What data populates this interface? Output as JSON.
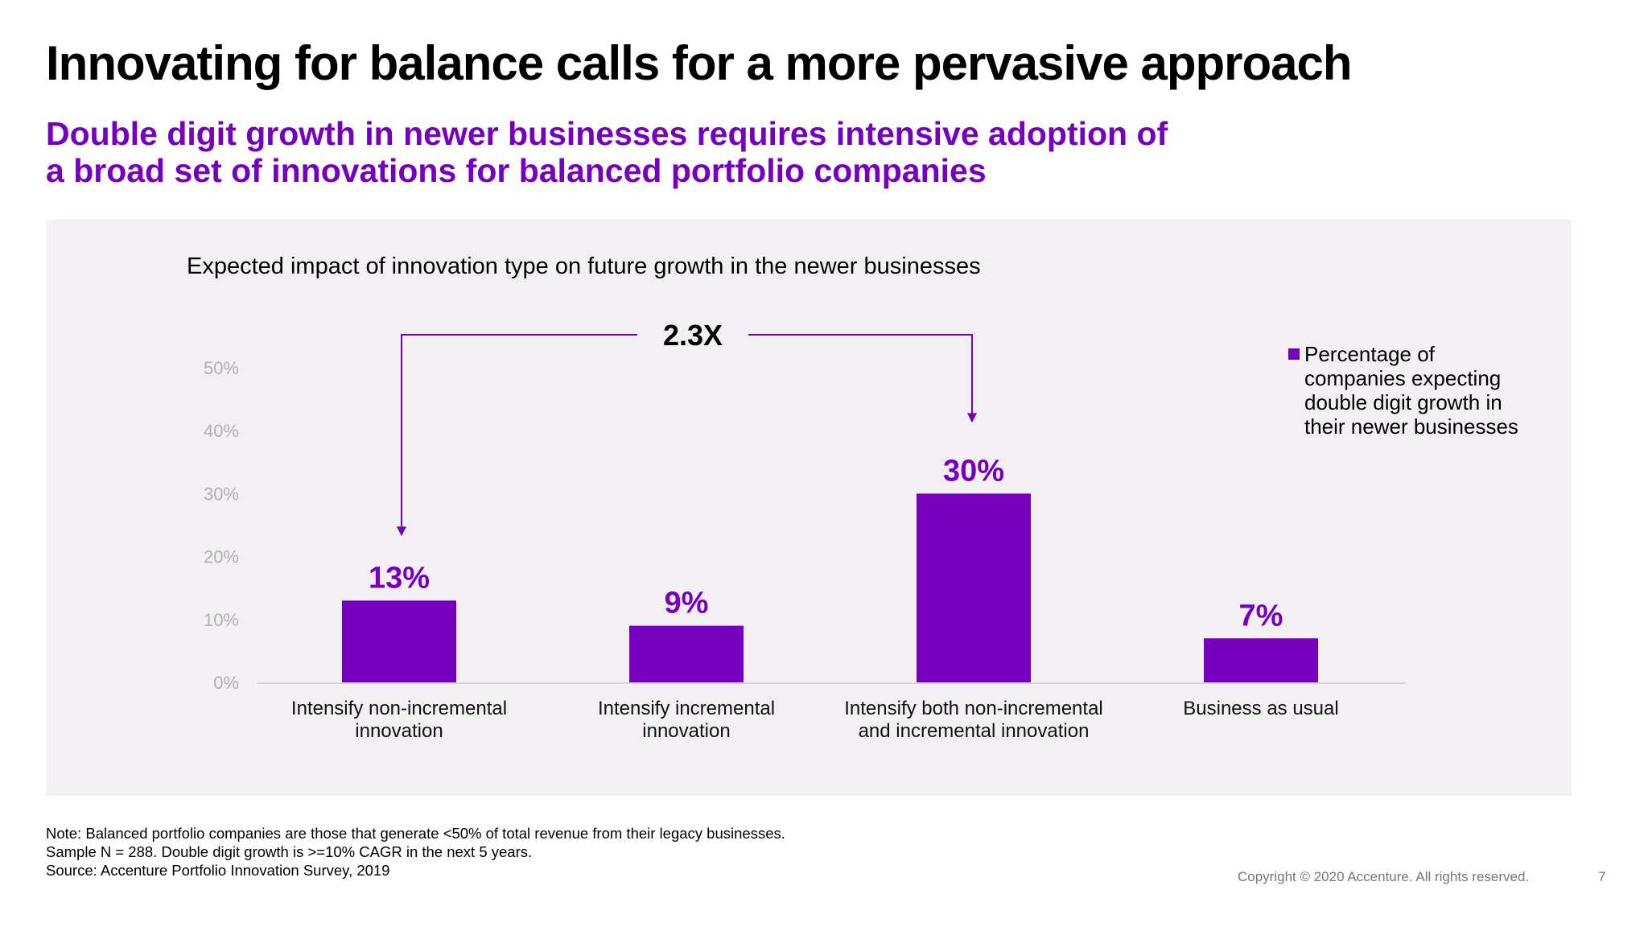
{
  "header": {
    "title": "Innovating for balance calls for a more pervasive approach",
    "subtitle_line1": "Double digit growth in newer businesses requires intensive adoption of",
    "subtitle_line2": "a broad set of innovations for balanced portfolio companies"
  },
  "colors": {
    "accent": "#7500c0",
    "title_text": "#000000",
    "panel_bg": "#f2f0f2",
    "axis_text": "#b0b0b0",
    "footer_text": "#777777"
  },
  "chart_data": {
    "type": "bar",
    "title": "Expected impact of innovation type on future growth in the newer businesses",
    "categories": [
      [
        "Intensify non-incremental",
        "innovation"
      ],
      [
        "Intensify incremental",
        "innovation"
      ],
      [
        "Intensify both non-incremental",
        "and incremental innovation"
      ],
      [
        "Business as usual"
      ]
    ],
    "series": [
      {
        "name": "Percentage of companies expecting double digit growth in their newer businesses",
        "values": [
          13,
          9,
          30,
          7
        ]
      }
    ],
    "value_labels": [
      "13%",
      "9%",
      "30%",
      "7%"
    ],
    "y_ticks": [
      "0%",
      "10%",
      "20%",
      "30%",
      "40%",
      "50%"
    ],
    "ylim": [
      0,
      50
    ],
    "grid": false,
    "legend_position": "top-right",
    "annotation": {
      "text": "2.3X",
      "from_category": 2,
      "to_category": 0
    }
  },
  "legend": {
    "lines": [
      "Percentage of",
      "companies expecting",
      "double digit growth in",
      "their newer businesses"
    ]
  },
  "footer": {
    "note_line1": "Note: Balanced portfolio companies are those that generate <50% of total revenue from their legacy businesses.",
    "note_line2": "Sample N = 288. Double digit growth is >=10% CAGR in the next 5 years.",
    "source": "Source: Accenture Portfolio Innovation Survey, 2019",
    "copyright": "Copyright © 2020 Accenture. All rights reserved.",
    "page_number": "7"
  }
}
